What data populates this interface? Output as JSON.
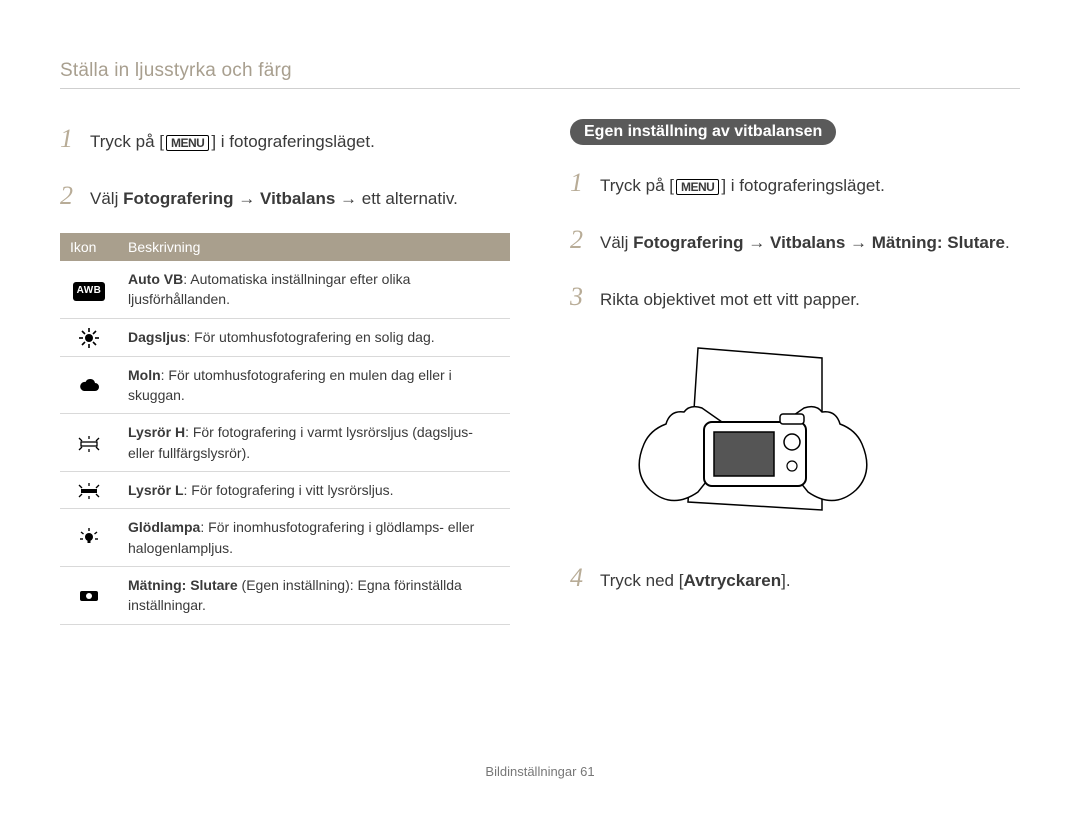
{
  "section_title": "Ställa in ljusstyrka och färg",
  "left": {
    "steps": [
      {
        "pre": "Tryck på [",
        "menu": "MENU",
        "post": "] i fotograferingsläget."
      },
      {
        "html": "Välj <b>Fotografering</b> → <b>Vitbalans</b> → ett alternativ."
      }
    ],
    "table": {
      "head_icon": "Ikon",
      "head_desc": "Beskrivning",
      "rows": [
        {
          "icon": "awb",
          "bold": "Auto VB",
          "rest": ": Automatiska inställningar efter olika ljusförhållanden."
        },
        {
          "icon": "sun",
          "bold": "Dagsljus",
          "rest": ": För utomhusfotografering en solig dag."
        },
        {
          "icon": "cloud",
          "bold": "Moln",
          "rest": ": För utomhusfotografering en mulen dag eller i skuggan."
        },
        {
          "icon": "fluoH",
          "bold": "Lysrör H",
          "rest": ": För fotografering i varmt lysrörsljus (dagsljus- eller fullfärgslysrör)."
        },
        {
          "icon": "fluoL",
          "bold": "Lysrör L",
          "rest": ": För fotografering i vitt lysrörsljus."
        },
        {
          "icon": "bulb",
          "bold": "Glödlampa",
          "rest": ": För inomhusfotografering i glödlamps- eller halogenlampljus."
        },
        {
          "icon": "measure",
          "bold": "Mätning: Slutare",
          "rest": " (Egen inställning): Egna förinställda inställningar."
        }
      ]
    }
  },
  "right": {
    "pill": "Egen inställning av vitbalansen",
    "steps": [
      {
        "pre": "Tryck på [",
        "menu": "MENU",
        "post": "] i fotograferingsläget."
      },
      {
        "html": "Välj <b>Fotografering</b> → <b>Vitbalans</b> → <b>Mätning: Slutare</b>."
      },
      {
        "plain": "Rikta objektivet mot ett vitt papper."
      },
      {
        "html": "Tryck ned [<b>Avtryckaren</b>]."
      }
    ]
  },
  "footer": {
    "label": "Bildinställningar",
    "page": "61"
  },
  "colors": {
    "accent": "#a99f8d",
    "stepnum": "#b8ac97",
    "title": "#a89f8f",
    "text": "#3a3a3a",
    "rule": "#d9d9d9",
    "pill": "#5a5a5a"
  }
}
